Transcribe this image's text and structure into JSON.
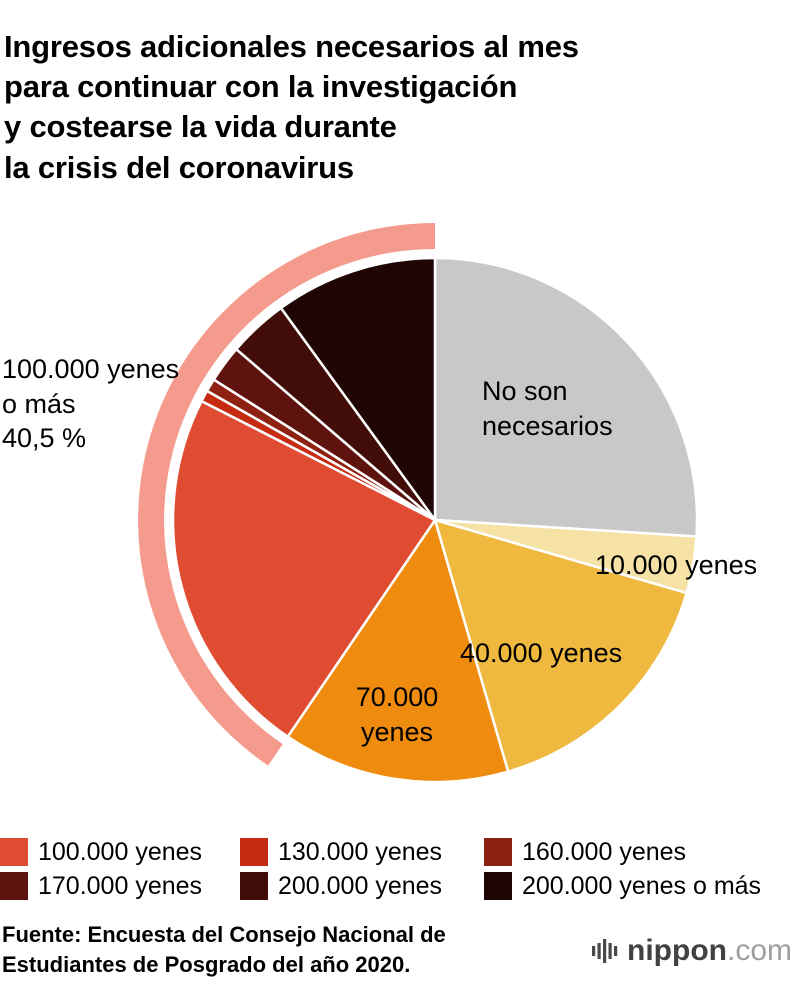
{
  "page": {
    "title": "Ingresos adicionales necesarios al mes\npara continuar con la investigación\ny costearse la vida durante\nla crisis del coronavirus",
    "source": "Fuente: Encuesta del Consejo Nacional de\nEstudiantes de Posgrado del año 2020.",
    "logo": {
      "name": "nippon",
      "tld": ".com",
      "icon": "audio-bars-icon",
      "icon_color": "#4a4a4a"
    }
  },
  "chart_data": {
    "type": "pie",
    "title": "Ingresos adicionales necesarios al mes para continuar con la investigación y costearse la vida durante la crisis del coronavirus",
    "unit": "percent",
    "start_angle_deg": 0,
    "direction": "clockwise",
    "slices": [
      {
        "label": "No son necesarios",
        "value": 26,
        "color": "#c8c8c8"
      },
      {
        "label": "10.000 yenes",
        "value": 3.5,
        "color": "#f6e2a4"
      },
      {
        "label": "40.000 yenes",
        "value": 16,
        "color": "#efb83e"
      },
      {
        "label": "70.000 yenes",
        "value": 14,
        "color": "#ef8c10"
      },
      {
        "label": "100.000 yenes",
        "value": 23,
        "color": "#df4c31"
      },
      {
        "label": "130.000 yenes",
        "value": 0.7,
        "color": "#c42b10"
      },
      {
        "label": "160.000 yenes",
        "value": 0.8,
        "color": "#8e2212"
      },
      {
        "label": "170.000 yenes",
        "value": 2.3,
        "color": "#5e130e"
      },
      {
        "label": "200.000 yenes",
        "value": 3.7,
        "color": "#420d08"
      },
      {
        "label": "200.000 yenes o más",
        "value": 10,
        "color": "#1f0605"
      }
    ],
    "highlight_arc": {
      "label": "100.000 yenes o más",
      "value": 40.5,
      "value_label": "40,5 %",
      "color": "#f49b8d",
      "from_slice_index": 4,
      "to_slice_index": 9
    },
    "legend_position": "bottom"
  },
  "labels": {
    "no_necesarios": "No son\nnecesarios",
    "yen10000": "10.000 yenes",
    "yen40000": "40.000 yenes",
    "yen70000": "70.000\nyenes",
    "annotation_100k": "100.000 yenes\no más\n40,5 %"
  },
  "legend": {
    "items": [
      {
        "label": "100.000 yenes",
        "color": "#df4c31"
      },
      {
        "label": "130.000 yenes",
        "color": "#c42b10"
      },
      {
        "label": "160.000 yenes",
        "color": "#8e2212"
      },
      {
        "label": "170.000 yenes",
        "color": "#5e130e"
      },
      {
        "label": "200.000 yenes",
        "color": "#420d08"
      },
      {
        "label": "200.000 yenes o más",
        "color": "#1f0605"
      }
    ]
  }
}
